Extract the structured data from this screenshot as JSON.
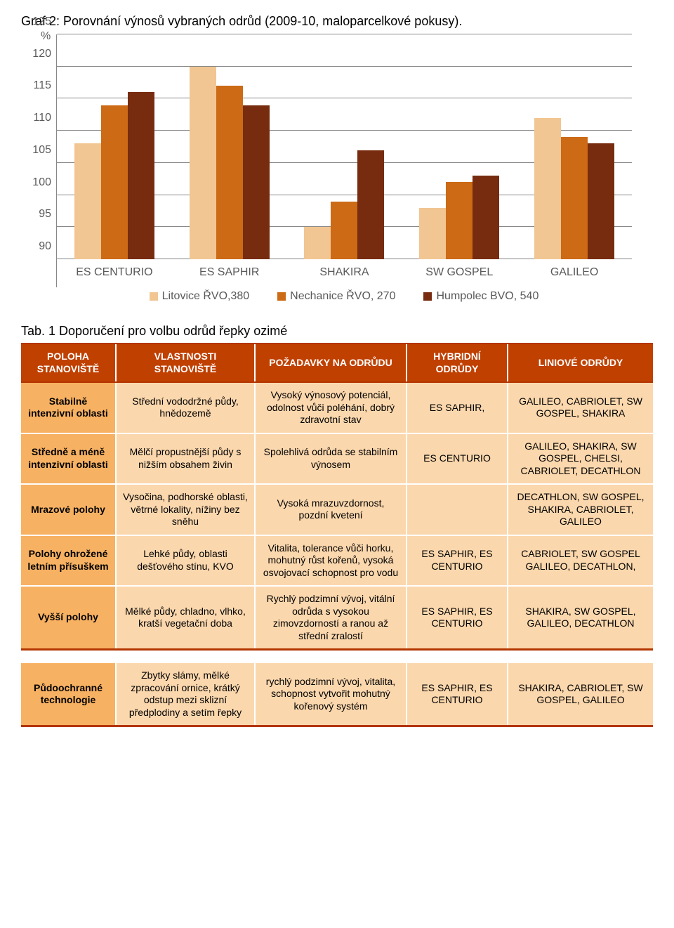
{
  "chart": {
    "title": "Graf 2: Porovnání výnosů vybraných odrůd (2009-10, maloparcelkové pokusy).",
    "y_axis_unit": "%",
    "categories": [
      "ES CENTURIO",
      "ES SAPHIR",
      "SHAKIRA",
      "SW GOSPEL",
      "GALILEO"
    ],
    "series_labels": [
      "Litovice ŘVO,380",
      "Nechanice ŘVO, 270",
      "Humpolec BVO, 540"
    ],
    "series_colors": [
      "#f1c692",
      "#cc6a16",
      "#772c10"
    ],
    "values": [
      [
        108,
        114,
        116
      ],
      [
        120,
        117,
        114
      ],
      [
        95,
        99,
        107
      ],
      [
        98,
        102,
        103
      ],
      [
        112,
        109,
        108
      ]
    ],
    "ylim": [
      90,
      125
    ],
    "ytick_step": 5,
    "gridline_color": "#878787",
    "axis_color": "#888888",
    "tick_color": "#595959",
    "background": "#ffffff"
  },
  "table": {
    "title": "Tab. 1 Doporučení pro volbu odrůd řepky ozimé",
    "header_bg": "#c04000",
    "header_border": "#b33500",
    "body_bg": "#fbd7ad",
    "rowhead_bg": "#f7b162",
    "columns": [
      "POLOHA STANOVIŠTĚ",
      "VLASTNOSTI STANOVIŠTĚ",
      "POŽADAVKY NA ODRŮDU",
      "HYBRIDNÍ ODRŮDY",
      "LINIOVÉ ODRŮDY"
    ],
    "rows": [
      [
        "Stabilně intenzivní oblasti",
        "Střední vododržné půdy, hnědozemě",
        "Vysoký výnosový potenciál, odolnost vůči poléhání, dobrý zdravotní stav",
        "ES SAPHIR,",
        "GALILEO, CABRIOLET, SW GOSPEL, SHAKIRA"
      ],
      [
        "Středně a méně intenzivní oblasti",
        "Mělčí propustnější půdy s nižším obsahem živin",
        "Spolehlivá odrůda se stabilním výnosem",
        "ES CENTURIO",
        "GALILEO, SHAKIRA, SW GOSPEL, CHELSI, CABRIOLET, DECATHLON"
      ],
      [
        "Mrazové polohy",
        "Vysočina, podhorské oblasti, větrné lokality, nížiny bez sněhu",
        "Vysoká mrazuvzdornost, pozdní kvetení",
        "",
        "DECATHLON, SW GOSPEL, SHAKIRA, CABRIOLET, GALILEO"
      ],
      [
        "Polohy ohrožené letním přísuškem",
        "Lehké půdy, oblasti dešťového stínu, KVO",
        "Vitalita, tolerance vůči horku, mohutný růst kořenů, vysoká osvojovací schopnost pro vodu",
        "ES SAPHIR, ES CENTURIO",
        "CABRIOLET, SW GOSPEL GALILEO, DECATHLON,"
      ],
      [
        "Vyšší polohy",
        "Mělké půdy, chladno, vlhko, kratší vegetační doba",
        "Rychlý podzimní vývoj, vitální odrůda s vysokou zimovzdorností a ranou až střední zralostí",
        "ES SAPHIR, ES CENTURIO",
        "SHAKIRA, SW GOSPEL, GALILEO, DECATHLON"
      ]
    ],
    "footer": [
      "Půdoochranné technologie",
      "Zbytky slámy, mělké zpracování ornice, krátký odstup mezi sklizní předplodiny a setím řepky",
      "rychlý podzimní vývoj, vitalita, schopnost vytvořit mohutný kořenový systém",
      "ES SAPHIR, ES CENTURIO",
      "SHAKIRA, CABRIOLET, SW GOSPEL, GALILEO"
    ]
  }
}
